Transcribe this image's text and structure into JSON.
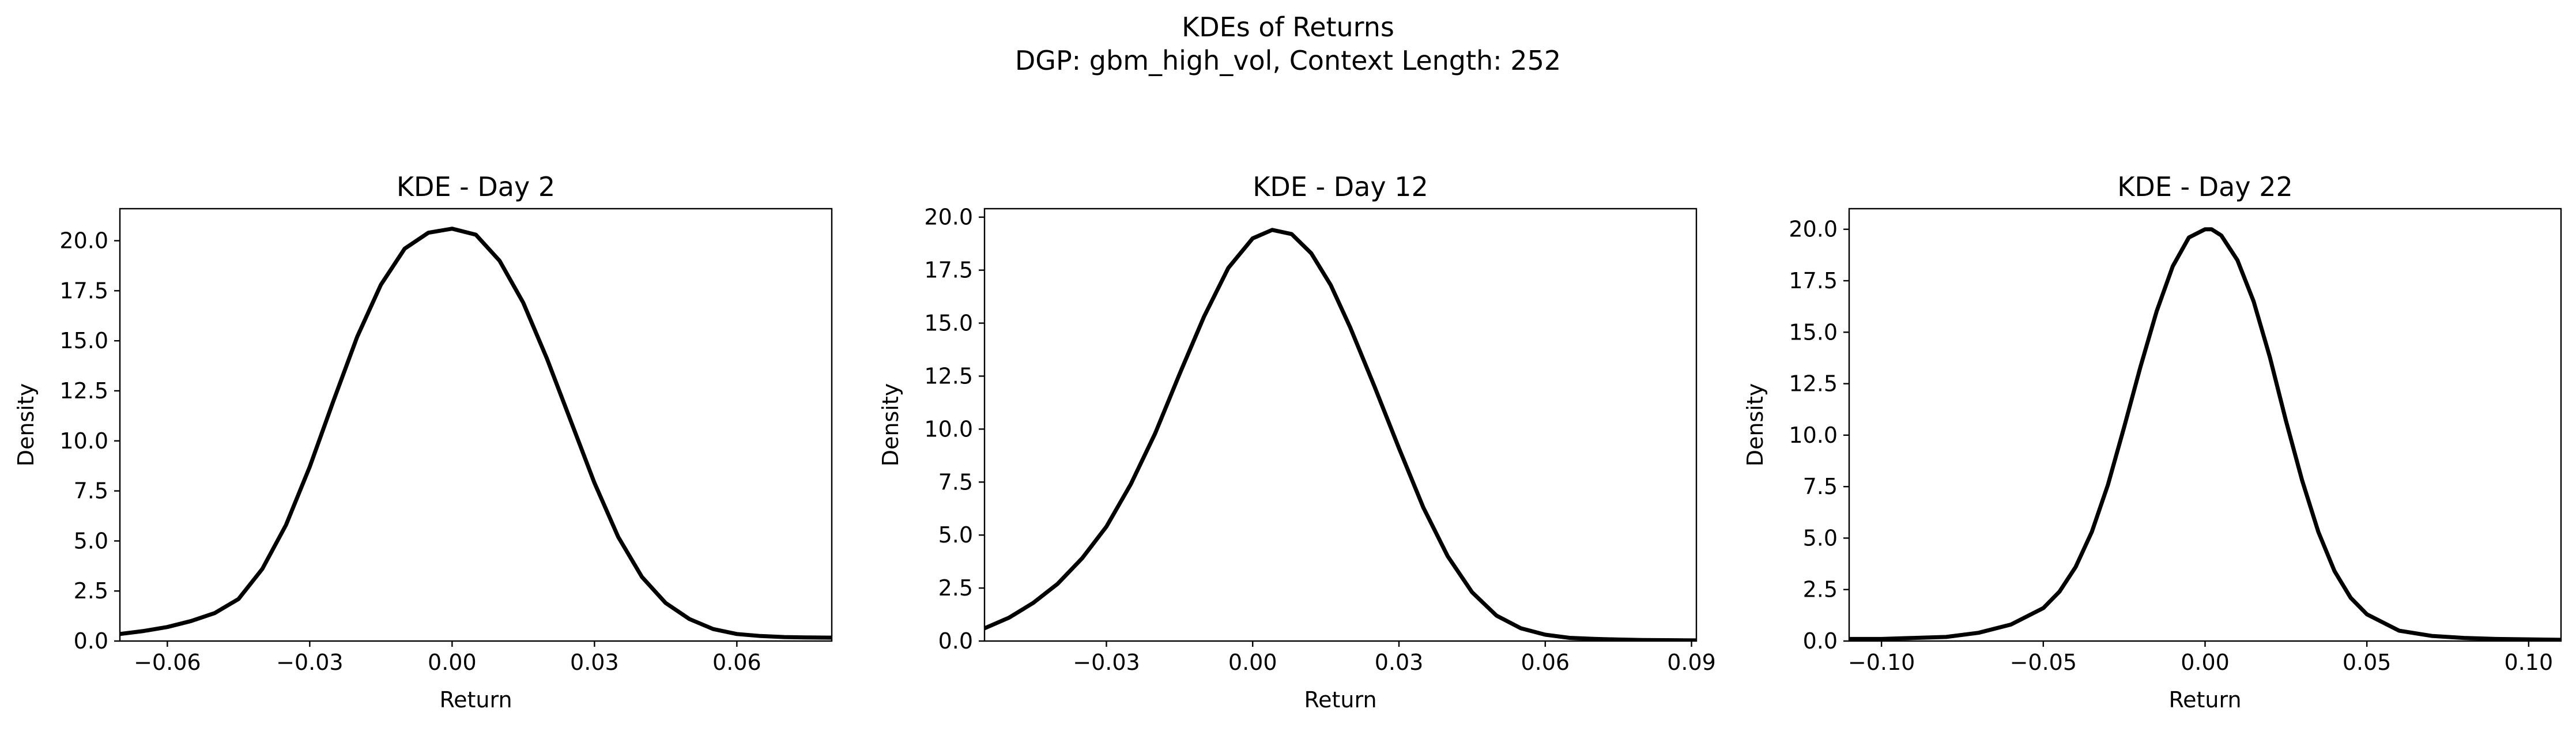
{
  "figure": {
    "title_line1": "KDEs of Returns",
    "title_line2": "DGP: gbm_high_vol, Context Length: 252"
  },
  "chart_data": [
    {
      "type": "line",
      "title": "KDE - Day 2",
      "xlabel": "Return",
      "ylabel": "Density",
      "xlim": [
        -0.07,
        0.08
      ],
      "ylim": [
        0.0,
        21.6
      ],
      "xticks": [
        -0.06,
        -0.03,
        0.0,
        0.03,
        0.06
      ],
      "xtick_labels": [
        "−0.06",
        "−0.03",
        "0.00",
        "0.03",
        "0.06"
      ],
      "yticks": [
        0.0,
        2.5,
        5.0,
        7.5,
        10.0,
        12.5,
        15.0,
        17.5,
        20.0
      ],
      "ytick_labels": [
        "0.0",
        "2.5",
        "5.0",
        "7.5",
        "10.0",
        "12.5",
        "15.0",
        "17.5",
        "20.0"
      ],
      "grid": false,
      "series": [
        {
          "color": "#000000",
          "x": [
            -0.07,
            -0.065,
            -0.06,
            -0.055,
            -0.05,
            -0.045,
            -0.04,
            -0.035,
            -0.03,
            -0.025,
            -0.02,
            -0.015,
            -0.01,
            -0.005,
            0.0,
            0.005,
            0.01,
            0.015,
            0.02,
            0.025,
            0.03,
            0.035,
            0.04,
            0.045,
            0.05,
            0.055,
            0.06,
            0.065,
            0.07,
            0.075,
            0.08
          ],
          "y": [
            0.35,
            0.5,
            0.7,
            1.0,
            1.4,
            2.1,
            3.6,
            5.8,
            8.7,
            12.0,
            15.2,
            17.8,
            19.6,
            20.4,
            20.6,
            20.3,
            19.0,
            16.9,
            14.1,
            11.0,
            7.9,
            5.2,
            3.2,
            1.9,
            1.1,
            0.6,
            0.35,
            0.25,
            0.2,
            0.18,
            0.17
          ]
        }
      ]
    },
    {
      "type": "line",
      "title": "KDE - Day 12",
      "xlabel": "Return",
      "ylabel": "Density",
      "xlim": [
        -0.055,
        0.091
      ],
      "ylim": [
        0.0,
        20.4
      ],
      "xticks": [
        -0.03,
        0.0,
        0.03,
        0.06,
        0.09
      ],
      "xtick_labels": [
        "−0.03",
        "0.00",
        "0.03",
        "0.06",
        "0.09"
      ],
      "yticks": [
        0.0,
        2.5,
        5.0,
        7.5,
        10.0,
        12.5,
        15.0,
        17.5,
        20.0
      ],
      "ytick_labels": [
        "0.0",
        "2.5",
        "5.0",
        "7.5",
        "10.0",
        "12.5",
        "15.0",
        "17.5",
        "20.0"
      ],
      "grid": false,
      "series": [
        {
          "color": "#000000",
          "x": [
            -0.055,
            -0.05,
            -0.045,
            -0.04,
            -0.035,
            -0.03,
            -0.025,
            -0.02,
            -0.015,
            -0.01,
            -0.005,
            0.0,
            0.004,
            0.008,
            0.012,
            0.016,
            0.02,
            0.025,
            0.03,
            0.035,
            0.04,
            0.045,
            0.05,
            0.055,
            0.06,
            0.065,
            0.07,
            0.075,
            0.08,
            0.085,
            0.091
          ],
          "y": [
            0.6,
            1.1,
            1.8,
            2.7,
            3.9,
            5.4,
            7.4,
            9.8,
            12.6,
            15.3,
            17.6,
            19.0,
            19.4,
            19.2,
            18.3,
            16.8,
            14.8,
            12.0,
            9.1,
            6.3,
            4.0,
            2.3,
            1.2,
            0.6,
            0.3,
            0.15,
            0.1,
            0.07,
            0.05,
            0.04,
            0.03
          ]
        }
      ]
    },
    {
      "type": "line",
      "title": "KDE - Day 22",
      "xlabel": "Return",
      "ylabel": "Density",
      "xlim": [
        -0.11,
        0.11
      ],
      "ylim": [
        0.0,
        21.0
      ],
      "xticks": [
        -0.1,
        -0.05,
        0.0,
        0.05,
        0.1
      ],
      "xtick_labels": [
        "−0.10",
        "−0.05",
        "0.00",
        "0.05",
        "0.10"
      ],
      "yticks": [
        0.0,
        2.5,
        5.0,
        7.5,
        10.0,
        12.5,
        15.0,
        17.5,
        20.0
      ],
      "ytick_labels": [
        "0.0",
        "2.5",
        "5.0",
        "7.5",
        "10.0",
        "12.5",
        "15.0",
        "17.5",
        "20.0"
      ],
      "grid": false,
      "series": [
        {
          "color": "#000000",
          "x": [
            -0.11,
            -0.1,
            -0.09,
            -0.08,
            -0.07,
            -0.06,
            -0.05,
            -0.045,
            -0.04,
            -0.035,
            -0.03,
            -0.025,
            -0.02,
            -0.015,
            -0.01,
            -0.005,
            0.0,
            0.002,
            0.005,
            0.01,
            0.015,
            0.02,
            0.025,
            0.03,
            0.035,
            0.04,
            0.045,
            0.05,
            0.06,
            0.07,
            0.08,
            0.09,
            0.1,
            0.11
          ],
          "y": [
            0.1,
            0.1,
            0.15,
            0.2,
            0.4,
            0.8,
            1.6,
            2.4,
            3.6,
            5.3,
            7.6,
            10.4,
            13.3,
            16.0,
            18.2,
            19.6,
            20.0,
            20.0,
            19.7,
            18.5,
            16.5,
            13.8,
            10.7,
            7.8,
            5.3,
            3.4,
            2.1,
            1.3,
            0.5,
            0.25,
            0.15,
            0.1,
            0.08,
            0.06
          ]
        }
      ]
    }
  ]
}
